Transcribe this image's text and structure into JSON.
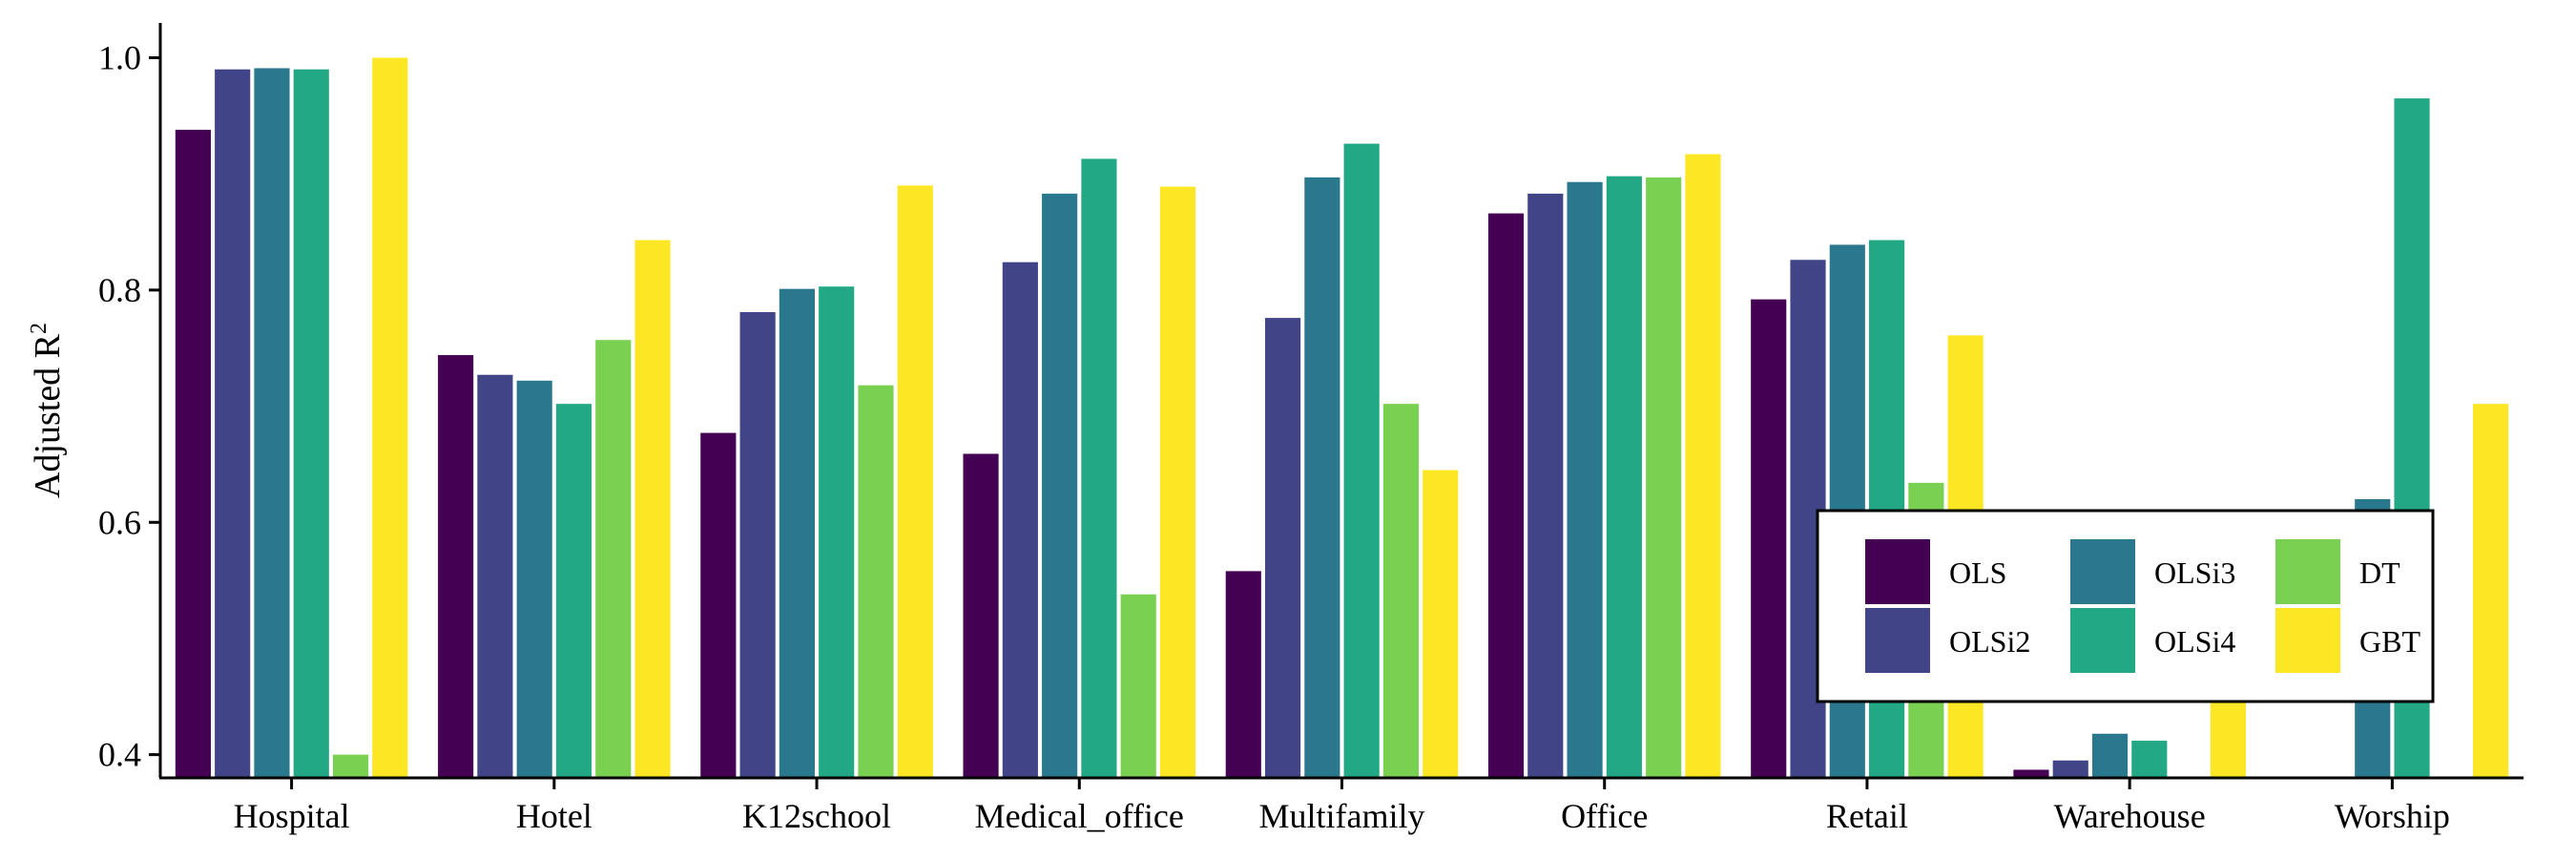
{
  "chart_data": {
    "type": "bar",
    "ylabel": "Adjusted R",
    "ylabel_superscript": "2",
    "ylim": [
      0.38,
      1.03
    ],
    "yticks": [
      "0.4",
      "0.6",
      "0.8",
      "1.0"
    ],
    "ytick_values": [
      0.4,
      0.6,
      0.8,
      1.0
    ],
    "categories": [
      "Hospital",
      "Hotel",
      "K12school",
      "Medical_office",
      "Multifamily",
      "Office",
      "Retail",
      "Warehouse",
      "Worship"
    ],
    "series": [
      {
        "name": "OLS",
        "color": "#440154",
        "values": [
          0.938,
          0.744,
          0.677,
          0.659,
          0.558,
          0.866,
          0.792,
          0.387,
          null
        ]
      },
      {
        "name": "OLSi2",
        "color": "#414487",
        "values": [
          0.99,
          0.727,
          0.781,
          0.824,
          0.776,
          0.883,
          0.826,
          0.395,
          null
        ]
      },
      {
        "name": "OLSi3",
        "color": "#2A788E",
        "values": [
          0.991,
          0.722,
          0.801,
          0.883,
          0.897,
          0.893,
          0.839,
          0.418,
          0.62
        ]
      },
      {
        "name": "OLSi4",
        "color": "#22A884",
        "values": [
          0.99,
          0.702,
          0.803,
          0.913,
          0.926,
          0.898,
          0.843,
          0.412,
          0.965
        ]
      },
      {
        "name": "DT",
        "color": "#7AD151",
        "values": [
          0.4,
          0.757,
          0.718,
          0.538,
          0.702,
          0.897,
          0.634,
          null,
          null
        ]
      },
      {
        "name": "GBT",
        "color": "#FDE725",
        "values": [
          1.0,
          0.843,
          0.89,
          0.889,
          0.645,
          0.917,
          0.761,
          0.56,
          0.702
        ]
      }
    ],
    "legend": {
      "placement": "bottom-right",
      "columns": 3
    },
    "grid": false
  }
}
